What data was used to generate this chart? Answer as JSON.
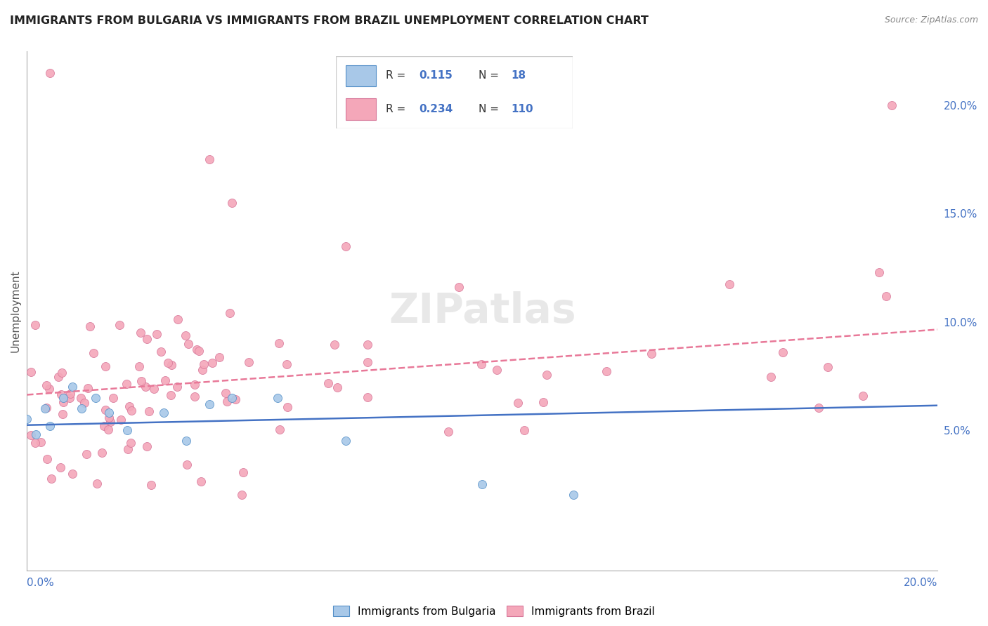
{
  "title": "IMMIGRANTS FROM BULGARIA VS IMMIGRANTS FROM BRAZIL UNEMPLOYMENT CORRELATION CHART",
  "source": "Source: ZipAtlas.com",
  "ylabel": "Unemployment",
  "ylabel_right_ticks": [
    "20.0%",
    "15.0%",
    "10.0%",
    "5.0%"
  ],
  "ylabel_right_values": [
    0.2,
    0.15,
    0.1,
    0.05
  ],
  "xlim": [
    0.0,
    0.2
  ],
  "ylim": [
    -0.015,
    0.225
  ],
  "legend_bulgaria": {
    "R": "0.115",
    "N": "18",
    "color": "#a8c8e8"
  },
  "legend_brazil": {
    "R": "0.234",
    "N": "110",
    "color": "#f4a7b9"
  },
  "bulgaria_color": "#a8c8e8",
  "brazil_color": "#f4a7b9",
  "bulgaria_line_color": "#4472c4",
  "brazil_line_color": "#e87898",
  "bg_color": "#ffffff",
  "grid_color": "#d8d8d8"
}
